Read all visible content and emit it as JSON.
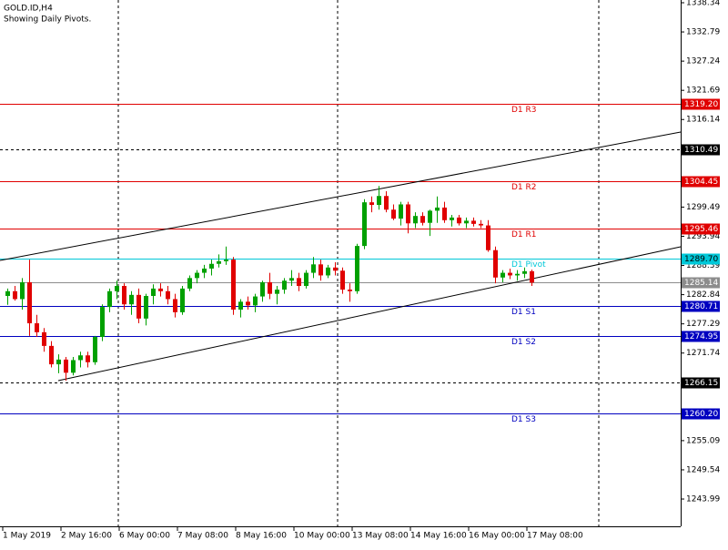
{
  "chart_data": {
    "type": "candlestick",
    "title": "GOLD.ID,H4",
    "subtitle": "Showing Daily Pivots.",
    "categories": [
      "1 May 2019",
      null,
      null,
      null,
      null,
      null,
      null,
      null,
      "2 May 16:00",
      null,
      null,
      null,
      null,
      null,
      null,
      null,
      "6 May 00:00",
      null,
      null,
      null,
      null,
      null,
      null,
      null,
      "7 May 08:00",
      null,
      null,
      null,
      null,
      null,
      null,
      null,
      "8 May 16:00",
      null,
      null,
      null,
      null,
      null,
      null,
      null,
      "10 May 00:00",
      null,
      null,
      null,
      null,
      null,
      null,
      null,
      "13 May 08:00",
      null,
      null,
      null,
      null,
      null,
      null,
      null,
      "14 May 16:00",
      null,
      null,
      null,
      null,
      null,
      null,
      null,
      "16 May 00:00",
      null,
      null,
      null,
      null,
      null,
      null,
      null,
      "17 May 08:00"
    ],
    "candles": [
      [
        1282.6,
        1284.0,
        1280.9,
        1283.5
      ],
      [
        1283.5,
        1284.5,
        1281.7,
        1282.0
      ],
      [
        1282.0,
        1286.0,
        1280.0,
        1285.2
      ],
      [
        1285.2,
        1289.5,
        1275.0,
        1277.4
      ],
      [
        1277.4,
        1279.0,
        1274.8,
        1275.7
      ],
      [
        1275.7,
        1276.5,
        1272.0,
        1273.1
      ],
      [
        1273.1,
        1274.0,
        1269.0,
        1269.6
      ],
      [
        1269.6,
        1271.5,
        1267.9,
        1270.5
      ],
      [
        1270.5,
        1271.0,
        1266.5,
        1268.0
      ],
      [
        1268.0,
        1271.0,
        1267.5,
        1270.4
      ],
      [
        1270.4,
        1272.0,
        1269.0,
        1271.3
      ],
      [
        1271.3,
        1272.0,
        1269.0,
        1270.0
      ],
      [
        1270.0,
        1275.0,
        1269.5,
        1274.8
      ],
      [
        1274.8,
        1281.0,
        1274.0,
        1280.5
      ],
      [
        1280.5,
        1284.0,
        1279.5,
        1283.5
      ],
      [
        1283.5,
        1285.5,
        1282.0,
        1284.5
      ],
      [
        1284.5,
        1285.0,
        1280.0,
        1281.0
      ],
      [
        1281.0,
        1283.5,
        1279.0,
        1282.8
      ],
      [
        1282.8,
        1284.0,
        1277.4,
        1278.3
      ],
      [
        1278.3,
        1283.0,
        1277.0,
        1282.6
      ],
      [
        1282.6,
        1284.8,
        1281.0,
        1284.0
      ],
      [
        1284.0,
        1285.0,
        1282.5,
        1283.5
      ],
      [
        1283.5,
        1284.5,
        1281.0,
        1282.0
      ],
      [
        1282.0,
        1283.0,
        1278.5,
        1279.5
      ],
      [
        1279.5,
        1284.5,
        1279.0,
        1284.0
      ],
      [
        1284.0,
        1286.5,
        1283.5,
        1286.0
      ],
      [
        1286.0,
        1287.5,
        1285.0,
        1287.0
      ],
      [
        1287.0,
        1288.5,
        1286.0,
        1287.8
      ],
      [
        1287.8,
        1289.5,
        1286.5,
        1288.7
      ],
      [
        1288.7,
        1290.5,
        1288.0,
        1289.2
      ],
      [
        1289.2,
        1292.0,
        1288.5,
        1289.5
      ],
      [
        1289.5,
        1290.0,
        1279.0,
        1280.0
      ],
      [
        1280.0,
        1282.0,
        1278.5,
        1281.5
      ],
      [
        1281.5,
        1282.5,
        1280.0,
        1280.8
      ],
      [
        1280.8,
        1283.0,
        1279.5,
        1282.5
      ],
      [
        1282.5,
        1285.5,
        1281.5,
        1285.2
      ],
      [
        1285.2,
        1287.0,
        1282.0,
        1283.0
      ],
      [
        1283.0,
        1284.5,
        1281.0,
        1283.8
      ],
      [
        1283.8,
        1286.0,
        1283.0,
        1285.5
      ],
      [
        1285.5,
        1287.5,
        1284.5,
        1286.0
      ],
      [
        1286.0,
        1287.0,
        1283.5,
        1284.5
      ],
      [
        1284.5,
        1287.5,
        1284.0,
        1287.0
      ],
      [
        1287.0,
        1290.0,
        1286.0,
        1288.6
      ],
      [
        1288.6,
        1289.5,
        1285.5,
        1286.5
      ],
      [
        1286.5,
        1288.5,
        1286.0,
        1288.0
      ],
      [
        1288.0,
        1289.0,
        1286.5,
        1287.4
      ],
      [
        1287.4,
        1288.0,
        1283.0,
        1283.8
      ],
      [
        1283.8,
        1285.0,
        1281.5,
        1283.5
      ],
      [
        1283.5,
        1292.5,
        1283.0,
        1292.1
      ],
      [
        1292.1,
        1301.0,
        1291.5,
        1300.4
      ],
      [
        1300.4,
        1301.5,
        1298.5,
        1299.9
      ],
      [
        1299.9,
        1303.5,
        1299.0,
        1301.6
      ],
      [
        1301.6,
        1302.5,
        1298.5,
        1299.0
      ],
      [
        1299.0,
        1300.0,
        1297.0,
        1297.3
      ],
      [
        1297.3,
        1300.5,
        1296.0,
        1300.0
      ],
      [
        1300.0,
        1300.5,
        1294.5,
        1296.4
      ],
      [
        1296.4,
        1298.5,
        1295.5,
        1297.8
      ],
      [
        1297.8,
        1298.5,
        1296.0,
        1296.5
      ],
      [
        1296.5,
        1299.0,
        1294.0,
        1298.8
      ],
      [
        1298.8,
        1301.5,
        1296.5,
        1299.4
      ],
      [
        1299.4,
        1300.5,
        1296.5,
        1297.0
      ],
      [
        1297.0,
        1298.0,
        1295.8,
        1297.5
      ],
      [
        1297.5,
        1298.0,
        1296.0,
        1296.4
      ],
      [
        1296.4,
        1297.5,
        1295.5,
        1296.9
      ],
      [
        1296.9,
        1297.5,
        1295.8,
        1296.3
      ],
      [
        1296.3,
        1297.0,
        1295.5,
        1296.0
      ],
      [
        1296.0,
        1297.0,
        1291.0,
        1291.3
      ],
      [
        1291.3,
        1292.0,
        1285.0,
        1286.1
      ],
      [
        1286.1,
        1287.5,
        1285.2,
        1287.0
      ],
      [
        1287.0,
        1287.8,
        1285.8,
        1286.5
      ],
      [
        1286.5,
        1287.5,
        1285.5,
        1286.8
      ],
      [
        1286.8,
        1288.0,
        1286.0,
        1287.3
      ],
      [
        1287.3,
        1287.6,
        1284.5,
        1285.14
      ]
    ],
    "up_color": "#00a000",
    "down_color": "#e00000",
    "ylim": [
      1238.8,
      1338.86
    ],
    "yticks": [
      1338.34,
      1332.79,
      1327.24,
      1321.69,
      1316.14,
      1299.49,
      1293.94,
      1288.39,
      1282.84,
      1277.29,
      1271.74,
      1255.09,
      1249.54,
      1243.99
    ],
    "levels": [
      {
        "name": "D1 R3",
        "value": 1319.2,
        "value_label": "1319.20",
        "color": "#e00000"
      },
      {
        "name": "D1 R2",
        "value": 1304.45,
        "color": "#e00000"
      },
      {
        "name": "D1 R1",
        "value": 1295.46,
        "color": "#e00000"
      },
      {
        "name": "D1 Pivot",
        "value": 1289.7,
        "value_label": "1289.70",
        "color": "#00c8d8"
      },
      {
        "name": "D1 S1",
        "value": 1280.71,
        "color": "#0000c0"
      },
      {
        "name": "D1 S2",
        "value": 1274.95,
        "color": "#0000c0"
      },
      {
        "name": "D1 S3",
        "value": 1260.2,
        "value_label": "1260.20",
        "color": "#0000c0"
      }
    ],
    "price_lines": [
      {
        "value": 1310.49,
        "color": "#000000",
        "dashed": true
      },
      {
        "value": 1266.15,
        "color": "#000000",
        "dashed": true
      },
      {
        "value": 1285.14,
        "color": "#8c8c8c",
        "dashed": false
      }
    ],
    "trendlines": [
      {
        "x": [
          -1,
          92.5
        ],
        "y": [
          1289.34,
          1313.76
        ]
      },
      {
        "x": [
          7,
          92.5
        ],
        "y": [
          1266.49,
          1291.94
        ]
      }
    ]
  }
}
